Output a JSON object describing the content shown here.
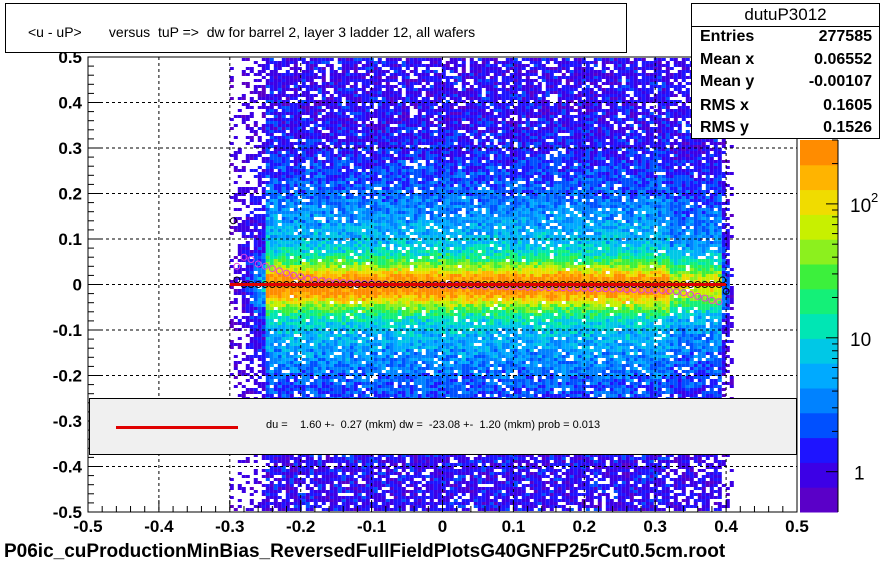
{
  "title": "<u - uP>       versus  tuP =>  dw for barrel 2, layer 3 ladder 12, all wafers",
  "stats": {
    "name": "dutuP3012",
    "rows": [
      {
        "label": "Entries",
        "value": "277585"
      },
      {
        "label": "Mean x",
        "value": "0.06552"
      },
      {
        "label": "Mean y",
        "value": "-0.00107"
      },
      {
        "label": "RMS x",
        "value": "0.1605"
      },
      {
        "label": "RMS y",
        "value": "0.1526"
      }
    ]
  },
  "fit_text": "du =    1.60 +-  0.27 (mkm) dw =  -23.08 +-  1.20 (mkm) prob = 0.013",
  "footer": "P06ic_cuProductionMinBias_ReversedFullFieldPlotsG40GNFP25rCut0.5cm.root",
  "colors": {
    "fit_line": "#e00000",
    "marker_black": "#000000",
    "marker_pink": "#e040e0",
    "grid": "#000000",
    "palette": [
      "#5a00c8",
      "#3c00e6",
      "#1e14ff",
      "#0050ff",
      "#0082ff",
      "#00aaff",
      "#00c8e6",
      "#00e6b4",
      "#14f078",
      "#3cf03c",
      "#8cf01e",
      "#c8f000",
      "#f0dc00",
      "#ffb400",
      "#ff8c00"
    ]
  },
  "chart_data": {
    "type": "heatmap",
    "title": "<u - uP>       versus  tuP =>  dw for barrel 2, layer 3 ladder 12, all wafers",
    "xlabel": "",
    "ylabel": "",
    "xlim": [
      -0.5,
      0.5
    ],
    "ylim": [
      -0.5,
      0.5
    ],
    "x_ticks": [
      -0.5,
      -0.4,
      -0.3,
      -0.2,
      -0.1,
      0,
      0.1,
      0.2,
      0.3,
      0.4,
      0.5
    ],
    "x_tick_labels": [
      "-0.5",
      "-0.4",
      "-0.3",
      "-0.2",
      "-0.1",
      "0",
      "0.1",
      "0.2",
      "0.3",
      "0.4",
      "0.5"
    ],
    "y_ticks": [
      -0.5,
      -0.4,
      -0.3,
      -0.2,
      -0.1,
      0,
      0.1,
      0.2,
      0.3,
      0.4,
      0.5
    ],
    "y_tick_labels": [
      "-0.5",
      "-0.4",
      "-0.3",
      "-0.2",
      "-0.1",
      "0",
      "0.1",
      "0.2",
      "0.3",
      "0.4",
      "0.5"
    ],
    "grid": true,
    "log_z": true,
    "z_tick_labels": [
      "1",
      "10",
      "10^2"
    ],
    "z_ticks": [
      1,
      10,
      100
    ],
    "z_range": [
      0.5,
      300
    ],
    "data_x_range": [
      -0.25,
      0.39
    ],
    "data_x_extent_low": [
      -0.3,
      0.41
    ],
    "band_center_y": 0.0,
    "band_sigma_y": 0.035,
    "spread_sigma_y": 0.15,
    "profile_black": [
      {
        "x": -0.295,
        "y": 0.14
      },
      {
        "x": -0.29,
        "y": 0.01
      },
      {
        "x": -0.28,
        "y": 0.0
      },
      {
        "x": -0.27,
        "y": 0.0
      },
      {
        "x": -0.26,
        "y": 0.0
      },
      {
        "x": -0.25,
        "y": 0.0
      },
      {
        "x": -0.24,
        "y": 0.0
      },
      {
        "x": -0.23,
        "y": 0.0
      },
      {
        "x": -0.22,
        "y": 0.0
      },
      {
        "x": -0.21,
        "y": 0.0
      },
      {
        "x": -0.2,
        "y": 0.0
      },
      {
        "x": -0.19,
        "y": 0.0
      },
      {
        "x": -0.18,
        "y": 0.0
      },
      {
        "x": -0.17,
        "y": 0.0
      },
      {
        "x": -0.16,
        "y": 0.0
      },
      {
        "x": -0.15,
        "y": 0.0
      },
      {
        "x": -0.14,
        "y": 0.0
      },
      {
        "x": -0.13,
        "y": 0.0
      },
      {
        "x": -0.12,
        "y": 0.0
      },
      {
        "x": -0.11,
        "y": 0.0
      },
      {
        "x": -0.1,
        "y": 0.0
      },
      {
        "x": -0.09,
        "y": 0.0
      },
      {
        "x": -0.08,
        "y": 0.0
      },
      {
        "x": -0.07,
        "y": 0.0
      },
      {
        "x": -0.06,
        "y": 0.0
      },
      {
        "x": -0.05,
        "y": 0.0
      },
      {
        "x": -0.04,
        "y": 0.0
      },
      {
        "x": -0.03,
        "y": 0.0
      },
      {
        "x": -0.02,
        "y": 0.0
      },
      {
        "x": -0.01,
        "y": 0.0
      },
      {
        "x": 0.0,
        "y": 0.0
      },
      {
        "x": 0.01,
        "y": 0.0
      },
      {
        "x": 0.02,
        "y": 0.0
      },
      {
        "x": 0.03,
        "y": 0.0
      },
      {
        "x": 0.04,
        "y": 0.0
      },
      {
        "x": 0.05,
        "y": 0.0
      },
      {
        "x": 0.06,
        "y": 0.0
      },
      {
        "x": 0.07,
        "y": 0.0
      },
      {
        "x": 0.08,
        "y": 0.0
      },
      {
        "x": 0.09,
        "y": 0.0
      },
      {
        "x": 0.1,
        "y": 0.0
      },
      {
        "x": 0.11,
        "y": 0.0
      },
      {
        "x": 0.12,
        "y": 0.0
      },
      {
        "x": 0.13,
        "y": 0.0
      },
      {
        "x": 0.14,
        "y": 0.0
      },
      {
        "x": 0.15,
        "y": 0.0
      },
      {
        "x": 0.16,
        "y": 0.0
      },
      {
        "x": 0.17,
        "y": 0.0
      },
      {
        "x": 0.18,
        "y": 0.0
      },
      {
        "x": 0.19,
        "y": 0.0
      },
      {
        "x": 0.2,
        "y": 0.0
      },
      {
        "x": 0.21,
        "y": 0.0
      },
      {
        "x": 0.22,
        "y": 0.0
      },
      {
        "x": 0.23,
        "y": 0.0
      },
      {
        "x": 0.24,
        "y": 0.0
      },
      {
        "x": 0.25,
        "y": 0.0
      },
      {
        "x": 0.26,
        "y": 0.0
      },
      {
        "x": 0.27,
        "y": 0.0
      },
      {
        "x": 0.28,
        "y": 0.0
      },
      {
        "x": 0.29,
        "y": 0.0
      },
      {
        "x": 0.3,
        "y": 0.0
      },
      {
        "x": 0.31,
        "y": 0.0
      },
      {
        "x": 0.32,
        "y": 0.0
      },
      {
        "x": 0.33,
        "y": 0.0
      },
      {
        "x": 0.34,
        "y": 0.0
      },
      {
        "x": 0.35,
        "y": 0.0
      },
      {
        "x": 0.36,
        "y": 0.0
      },
      {
        "x": 0.37,
        "y": 0.0
      },
      {
        "x": 0.38,
        "y": 0.0
      },
      {
        "x": 0.39,
        "y": 0.0
      },
      {
        "x": 0.395,
        "y": 0.01
      },
      {
        "x": 0.4,
        "y": -0.015
      }
    ],
    "profile_pink": [
      {
        "x": -0.29,
        "y": 0.04
      },
      {
        "x": -0.28,
        "y": 0.06
      },
      {
        "x": -0.27,
        "y": 0.055
      },
      {
        "x": -0.26,
        "y": 0.045
      },
      {
        "x": -0.25,
        "y": 0.04
      },
      {
        "x": -0.24,
        "y": 0.035
      },
      {
        "x": -0.23,
        "y": 0.03
      },
      {
        "x": -0.22,
        "y": 0.025
      },
      {
        "x": -0.21,
        "y": 0.02
      },
      {
        "x": -0.2,
        "y": 0.017
      },
      {
        "x": -0.19,
        "y": 0.013
      },
      {
        "x": -0.18,
        "y": 0.01
      },
      {
        "x": -0.17,
        "y": 0.008
      },
      {
        "x": -0.16,
        "y": 0.006
      },
      {
        "x": -0.15,
        "y": 0.005
      },
      {
        "x": -0.14,
        "y": 0.004
      },
      {
        "x": -0.13,
        "y": 0.003
      },
      {
        "x": -0.12,
        "y": 0.003
      },
      {
        "x": -0.11,
        "y": 0.002
      },
      {
        "x": -0.1,
        "y": 0.002
      },
      {
        "x": -0.09,
        "y": 0.001
      },
      {
        "x": -0.08,
        "y": 0.001
      },
      {
        "x": -0.07,
        "y": 0.0
      },
      {
        "x": -0.06,
        "y": 0.0
      },
      {
        "x": -0.05,
        "y": 0.0
      },
      {
        "x": -0.04,
        "y": 0.0
      },
      {
        "x": -0.03,
        "y": -0.001
      },
      {
        "x": -0.02,
        "y": -0.001
      },
      {
        "x": -0.01,
        "y": -0.001
      },
      {
        "x": 0.0,
        "y": -0.002
      },
      {
        "x": 0.01,
        "y": -0.002
      },
      {
        "x": 0.02,
        "y": -0.002
      },
      {
        "x": 0.03,
        "y": -0.003
      },
      {
        "x": 0.04,
        "y": -0.003
      },
      {
        "x": 0.05,
        "y": -0.003
      },
      {
        "x": 0.06,
        "y": -0.004
      },
      {
        "x": 0.07,
        "y": -0.004
      },
      {
        "x": 0.08,
        "y": -0.004
      },
      {
        "x": 0.09,
        "y": -0.005
      },
      {
        "x": 0.1,
        "y": -0.005
      },
      {
        "x": 0.11,
        "y": -0.005
      },
      {
        "x": 0.12,
        "y": -0.006
      },
      {
        "x": 0.13,
        "y": -0.006
      },
      {
        "x": 0.14,
        "y": -0.006
      },
      {
        "x": 0.15,
        "y": -0.007
      },
      {
        "x": 0.16,
        "y": -0.007
      },
      {
        "x": 0.17,
        "y": -0.007
      },
      {
        "x": 0.18,
        "y": -0.008
      },
      {
        "x": 0.19,
        "y": -0.008
      },
      {
        "x": 0.2,
        "y": -0.008
      },
      {
        "x": 0.21,
        "y": -0.009
      },
      {
        "x": 0.22,
        "y": -0.009
      },
      {
        "x": 0.23,
        "y": -0.009
      },
      {
        "x": 0.24,
        "y": -0.01
      },
      {
        "x": 0.25,
        "y": -0.01
      },
      {
        "x": 0.26,
        "y": -0.011
      },
      {
        "x": 0.27,
        "y": -0.011
      },
      {
        "x": 0.28,
        "y": -0.012
      },
      {
        "x": 0.29,
        "y": -0.012
      },
      {
        "x": 0.3,
        "y": -0.013
      },
      {
        "x": 0.31,
        "y": -0.013
      },
      {
        "x": 0.32,
        "y": -0.014
      },
      {
        "x": 0.33,
        "y": -0.016
      },
      {
        "x": 0.34,
        "y": -0.018
      },
      {
        "x": 0.35,
        "y": -0.022
      },
      {
        "x": 0.36,
        "y": -0.026
      },
      {
        "x": 0.37,
        "y": -0.03
      },
      {
        "x": 0.38,
        "y": -0.035
      },
      {
        "x": 0.39,
        "y": -0.038
      }
    ],
    "fit_line": {
      "x": [
        -0.3,
        0.4
      ],
      "y": [
        0.0,
        0.0
      ]
    }
  }
}
